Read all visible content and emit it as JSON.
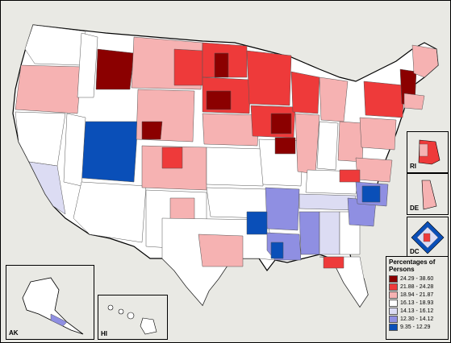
{
  "legend": {
    "title": "Percentages of Persons",
    "classes": [
      {
        "label": "24.29 - 38.60",
        "color": "#8b0000"
      },
      {
        "label": "21.88 - 24.28",
        "color": "#ee3a3a"
      },
      {
        "label": "18.94 - 21.87",
        "color": "#f6b2b2"
      },
      {
        "label": "16.13 - 18.93",
        "color": "#ffffff"
      },
      {
        "label": "14.13 - 16.12",
        "color": "#dcdcf3"
      },
      {
        "label": "12.30 - 14.12",
        "color": "#8f8fe2"
      },
      {
        "label": "9.35 - 12.29",
        "color": "#0a4fb8"
      }
    ]
  },
  "insets": {
    "ak": "AK",
    "hi": "HI",
    "ri": "RI",
    "de": "DE",
    "dc": "DC"
  },
  "colors": {
    "background": "#e9e9e4",
    "border": "#000000",
    "region_line": "#555555"
  }
}
